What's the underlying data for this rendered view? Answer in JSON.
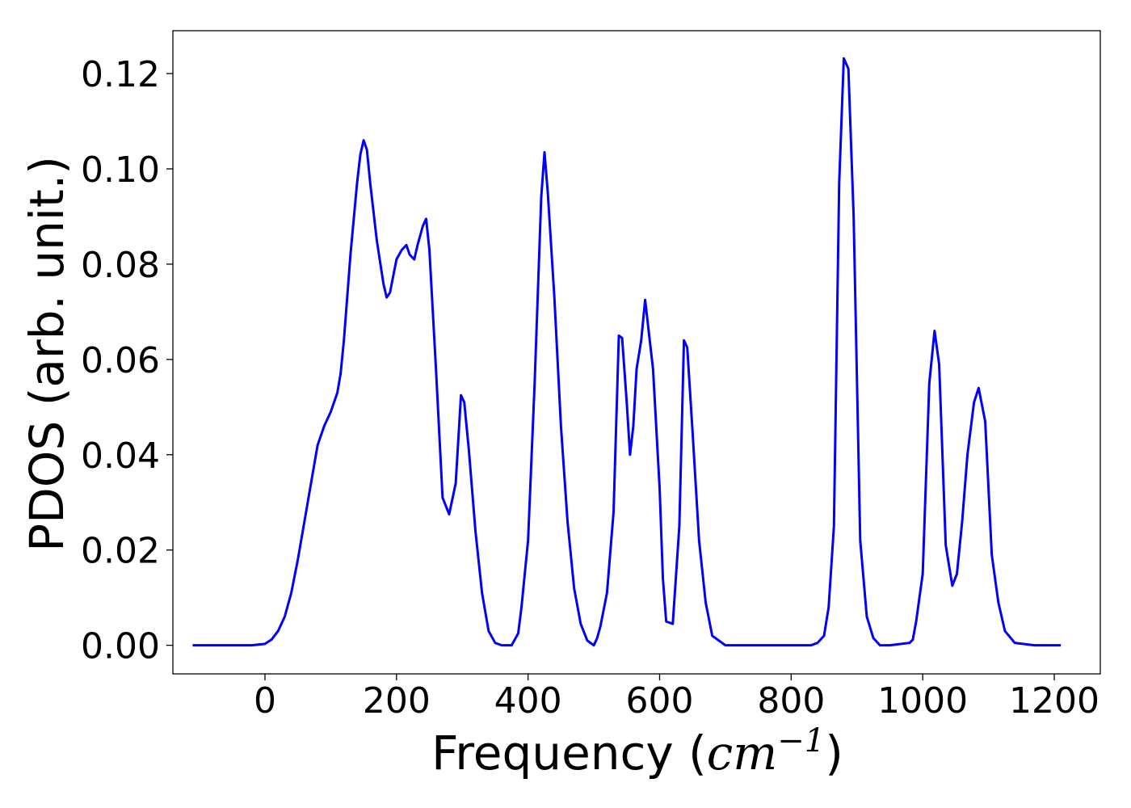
{
  "chart_data": {
    "type": "line",
    "title": "",
    "xlabel_main": "Frequency (",
    "xlabel_unit_base": "cm",
    "xlabel_unit_exp": "−1",
    "xlabel_close": ")",
    "ylabel": "PDOS (arb. unit.)",
    "xlim": [
      -140,
      1270
    ],
    "ylim": [
      -0.006,
      0.129
    ],
    "x_ticks": [
      0,
      200,
      400,
      600,
      800,
      1000,
      1200
    ],
    "x_tick_labels": [
      "0",
      "200",
      "400",
      "600",
      "800",
      "1000",
      "1200"
    ],
    "y_ticks": [
      0.0,
      0.02,
      0.04,
      0.06,
      0.08,
      0.1,
      0.12
    ],
    "y_tick_labels": [
      "0.00",
      "0.02",
      "0.04",
      "0.06",
      "0.08",
      "0.10",
      "0.12"
    ],
    "grid": false,
    "series": [
      {
        "color": "#0000ff",
        "x": [
          -110,
          -60,
          -20,
          0,
          10,
          20,
          30,
          40,
          50,
          60,
          70,
          80,
          90,
          100,
          110,
          115,
          120,
          130,
          140,
          145,
          150,
          155,
          160,
          170,
          180,
          185,
          190,
          200,
          208,
          215,
          220,
          227,
          232,
          240,
          245,
          250,
          260,
          270,
          280,
          290,
          298,
          303,
          310,
          320,
          330,
          340,
          350,
          360,
          375,
          385,
          390,
          400,
          410,
          420,
          425,
          430,
          440,
          450,
          460,
          470,
          480,
          490,
          500,
          505,
          510,
          520,
          530,
          538,
          543,
          550,
          555,
          560,
          565,
          572,
          578,
          585,
          590,
          600,
          605,
          610,
          620,
          630,
          637,
          642,
          650,
          660,
          670,
          680,
          700,
          750,
          800,
          830,
          840,
          850,
          857,
          865,
          873,
          880,
          887,
          895,
          905,
          915,
          925,
          935,
          950,
          980,
          985,
          990,
          1000,
          1010,
          1018,
          1025,
          1035,
          1045,
          1052,
          1060,
          1068,
          1078,
          1085,
          1095,
          1105,
          1115,
          1125,
          1140,
          1170,
          1210
        ],
        "y": [
          0,
          0,
          0,
          0.0003,
          0.0012,
          0.003,
          0.006,
          0.011,
          0.018,
          0.026,
          0.034,
          0.042,
          0.046,
          0.049,
          0.053,
          0.057,
          0.064,
          0.082,
          0.097,
          0.103,
          0.106,
          0.104,
          0.097,
          0.085,
          0.076,
          0.073,
          0.074,
          0.081,
          0.083,
          0.084,
          0.082,
          0.081,
          0.084,
          0.088,
          0.0895,
          0.083,
          0.058,
          0.031,
          0.0275,
          0.034,
          0.0525,
          0.051,
          0.041,
          0.024,
          0.011,
          0.003,
          0.0005,
          0,
          0,
          0.0025,
          0.008,
          0.022,
          0.055,
          0.094,
          0.1035,
          0.095,
          0.073,
          0.046,
          0.026,
          0.012,
          0.0045,
          0.001,
          0,
          0.0015,
          0.004,
          0.011,
          0.028,
          0.065,
          0.0645,
          0.051,
          0.04,
          0.046,
          0.058,
          0.064,
          0.0725,
          0.064,
          0.058,
          0.033,
          0.014,
          0.005,
          0.0045,
          0.025,
          0.064,
          0.0625,
          0.045,
          0.022,
          0.009,
          0.002,
          0,
          0,
          0,
          0,
          0.0005,
          0.002,
          0.008,
          0.025,
          0.097,
          0.1232,
          0.121,
          0.09,
          0.022,
          0.006,
          0.0015,
          0,
          0,
          0.0005,
          0.0012,
          0.005,
          0.015,
          0.055,
          0.066,
          0.059,
          0.021,
          0.0125,
          0.015,
          0.026,
          0.04,
          0.051,
          0.054,
          0.047,
          0.019,
          0.009,
          0.003,
          0.0005,
          0,
          0
        ]
      }
    ]
  }
}
